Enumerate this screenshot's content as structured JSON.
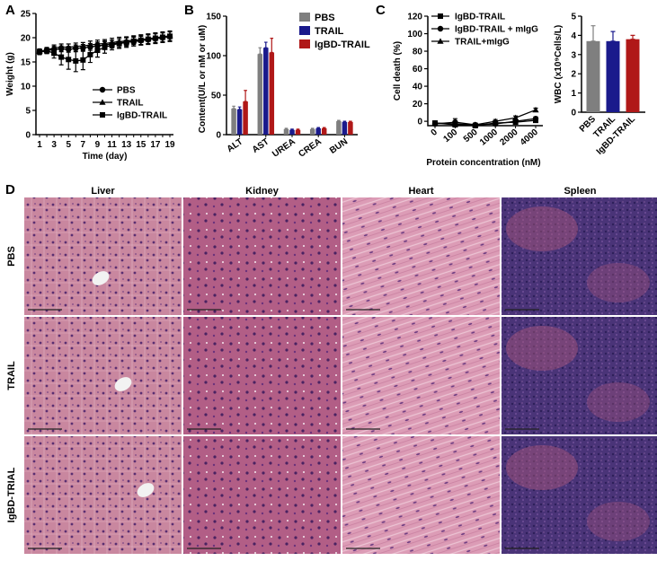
{
  "panel_letters": {
    "a": "A",
    "b": "B",
    "c": "C",
    "d": "D"
  },
  "colors": {
    "pbs": "#7f7f7f",
    "trail": "#1a1a8c",
    "igbd": "#b01818"
  },
  "chart_data": [
    {
      "id": "A",
      "type": "line",
      "ylabel": "Weight (g)",
      "xlabel": "Time (day)",
      "x": [
        1,
        2,
        3,
        4,
        5,
        6,
        7,
        8,
        9,
        10,
        11,
        12,
        13,
        14,
        15,
        16,
        17,
        18,
        19
      ],
      "xticks": [
        "1",
        "3",
        "5",
        "7",
        "9",
        "11",
        "13",
        "15",
        "17",
        "19"
      ],
      "yticks": [
        "0",
        "5",
        "10",
        "15",
        "20",
        "25"
      ],
      "ylim": [
        0,
        25
      ],
      "legend_position": "bottom-right",
      "series": [
        {
          "name": "PBS",
          "marker": "circle",
          "values": [
            17.0,
            17.3,
            17.6,
            17.7,
            17.6,
            17.8,
            17.9,
            18.1,
            18.3,
            18.5,
            18.7,
            18.9,
            19.1,
            19.2,
            19.4,
            19.6,
            19.8,
            20.0,
            20.2
          ],
          "err": [
            0.5,
            0.5,
            0.6,
            0.6,
            0.6,
            0.7,
            0.7,
            0.7,
            0.8,
            0.8,
            0.8,
            0.9,
            0.9,
            0.9,
            0.9,
            1.0,
            1.0,
            1.0,
            1.0
          ]
        },
        {
          "name": "TRAIL",
          "marker": "triangle",
          "values": [
            17.2,
            17.5,
            17.9,
            18.1,
            18.0,
            18.2,
            18.3,
            18.5,
            18.7,
            18.8,
            19.0,
            19.2,
            19.3,
            19.5,
            19.6,
            19.8,
            20.0,
            20.2,
            20.4
          ],
          "err": [
            0.5,
            0.5,
            0.6,
            0.6,
            0.7,
            0.7,
            0.7,
            0.8,
            0.8,
            0.8,
            0.9,
            0.9,
            0.9,
            0.9,
            1.0,
            1.0,
            1.0,
            1.0,
            1.0
          ]
        },
        {
          "name": "IgBD-TRAIL",
          "marker": "square",
          "values": [
            17.1,
            17.3,
            16.8,
            16.0,
            15.5,
            15.2,
            15.4,
            16.5,
            17.4,
            18.0,
            18.5,
            18.8,
            19.0,
            19.3,
            19.5,
            19.7,
            19.9,
            20.1,
            20.3
          ],
          "err": [
            0.5,
            0.6,
            1.0,
            1.6,
            2.0,
            2.2,
            2.0,
            1.6,
            1.4,
            1.2,
            1.0,
            1.0,
            1.0,
            1.0,
            1.0,
            1.0,
            1.0,
            1.0,
            1.0
          ]
        }
      ]
    },
    {
      "id": "B",
      "type": "bar",
      "ylabel": "Content(U/L or nM or uM)",
      "categories": [
        "ALT",
        "AST",
        "UREA",
        "CREA",
        "BUN"
      ],
      "yticks": [
        "0",
        "50",
        "100",
        "150"
      ],
      "ylim": [
        0,
        150
      ],
      "legend_position": "top-right",
      "series": [
        {
          "name": "PBS",
          "values": [
            33,
            102,
            7,
            7,
            17
          ],
          "err": [
            3,
            8,
            1,
            1,
            1
          ]
        },
        {
          "name": "TRAIL",
          "values": [
            32,
            110,
            6,
            8,
            16
          ],
          "err": [
            3,
            7,
            1,
            1,
            1
          ]
        },
        {
          "name": "IgBD-TRAIL",
          "values": [
            42,
            104,
            6,
            8,
            16
          ],
          "err": [
            14,
            18,
            1,
            1,
            1
          ]
        }
      ]
    },
    {
      "id": "C",
      "type": "line",
      "ylabel": "Cell death (%)",
      "xlabel": "Protein concentration (nM)",
      "categories": [
        "0",
        "100",
        "500",
        "1000",
        "2000",
        "4000"
      ],
      "yticks": [
        "0",
        "20",
        "40",
        "60",
        "80",
        "100",
        "120"
      ],
      "ylim": [
        -5,
        120
      ],
      "legend_position": "top",
      "series": [
        {
          "name": "IgBD-TRAIL",
          "marker": "square",
          "values": [
            -2,
            -4,
            -5,
            -2,
            -1,
            1
          ],
          "err": [
            2,
            2,
            2,
            2,
            2,
            2
          ]
        },
        {
          "name": "IgBD-TRAIL + mIgG",
          "marker": "circle",
          "values": [
            -3,
            -1,
            -4,
            -3,
            0,
            3
          ],
          "err": [
            2,
            4,
            2,
            2,
            2,
            2
          ]
        },
        {
          "name": "TRAIL+mIgG",
          "marker": "triangle",
          "values": [
            -2,
            -3,
            -4,
            0,
            4,
            13
          ],
          "err": [
            2,
            2,
            2,
            2,
            2,
            2
          ]
        }
      ]
    },
    {
      "id": "C2",
      "type": "bar",
      "ylabel": "WBC (x10⁹Cells/L)",
      "categories": [
        "PBS",
        "TRAIL",
        "IgBD-TRAIL"
      ],
      "yticks": [
        "0",
        "1",
        "2",
        "3",
        "4",
        "5"
      ],
      "ylim": [
        0,
        5
      ],
      "values": [
        3.7,
        3.7,
        3.8
      ],
      "err": [
        0.8,
        0.5,
        0.2
      ]
    }
  ],
  "histology": {
    "columns": [
      "Liver",
      "Kidney",
      "Heart",
      "Spleen"
    ],
    "rows": [
      "PBS",
      "TRAIL",
      "IgBD-TRIAL"
    ]
  }
}
